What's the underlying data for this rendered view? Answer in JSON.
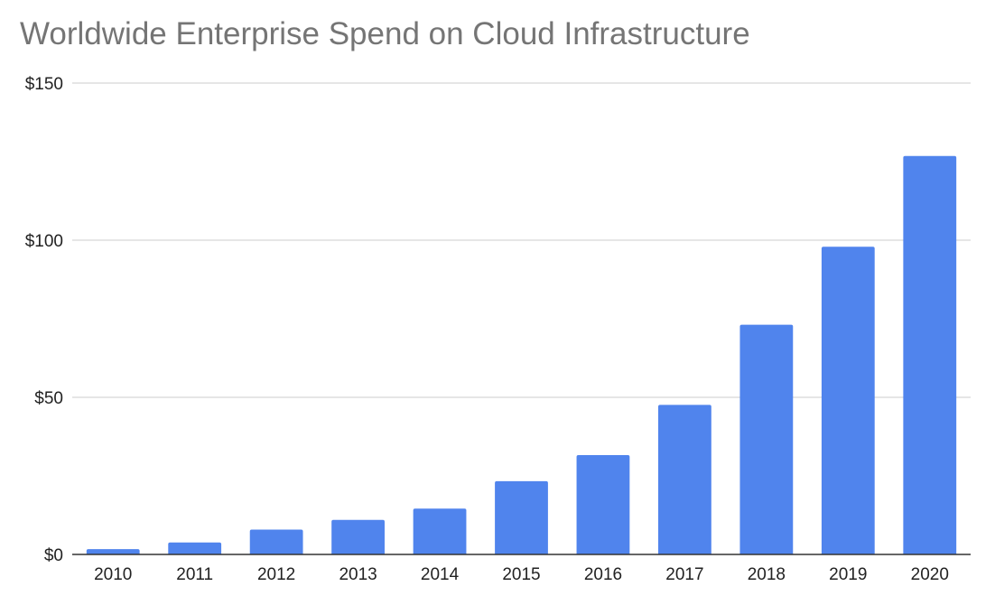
{
  "chart_data": {
    "type": "bar",
    "title": "Worldwide Enterprise Spend on Cloud Infrastructure",
    "xlabel": "",
    "ylabel": "",
    "categories": [
      "2010",
      "2011",
      "2012",
      "2013",
      "2014",
      "2015",
      "2016",
      "2017",
      "2018",
      "2019",
      "2020"
    ],
    "values": [
      1.7,
      3.8,
      7.9,
      11.0,
      14.6,
      23.3,
      31.6,
      47.6,
      73.1,
      97.9,
      126.8
    ],
    "ylim": [
      0,
      150
    ],
    "yticks": [
      0,
      50,
      100,
      150
    ],
    "ytick_labels": [
      "$0",
      "$50",
      "$100",
      "$150"
    ],
    "grid": true,
    "legend": "none",
    "colors": {
      "bar": "#5084ed",
      "grid": "#cccccc",
      "axis": "#333333",
      "title": "#757575"
    }
  }
}
